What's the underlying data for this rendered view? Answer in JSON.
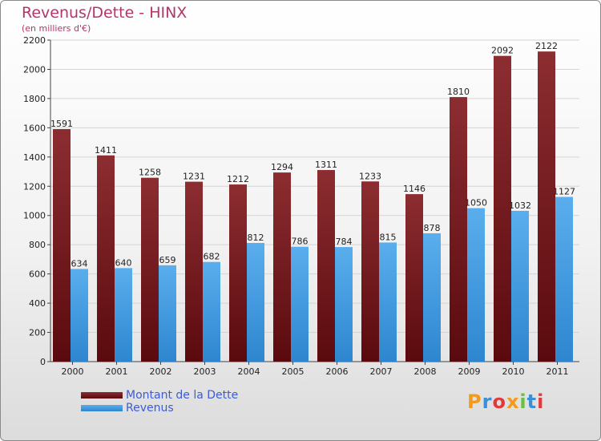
{
  "title": "Revenus/Dette - HINX",
  "subtitle": "(en milliers d'€)",
  "logo": "Proxiti",
  "chart_data": {
    "type": "bar",
    "categories": [
      "2000",
      "2001",
      "2002",
      "2003",
      "2004",
      "2005",
      "2006",
      "2007",
      "2008",
      "2009",
      "2010",
      "2011"
    ],
    "series": [
      {
        "name": "Montant de la Dette",
        "color": "#7a1e22",
        "values": [
          1591,
          1411,
          1258,
          1231,
          1212,
          1294,
          1311,
          1233,
          1146,
          1810,
          2092,
          2122
        ]
      },
      {
        "name": "Revenus",
        "color": "#4ea3e6",
        "values": [
          634,
          640,
          659,
          682,
          812,
          786,
          784,
          815,
          878,
          1050,
          1032,
          1127
        ]
      }
    ],
    "yticks": [
      0,
      200,
      400,
      600,
      800,
      1000,
      1200,
      1400,
      1600,
      1800,
      2000,
      2200
    ],
    "ylim": [
      0,
      2200
    ],
    "grid": true,
    "legend": "bottom-left"
  }
}
